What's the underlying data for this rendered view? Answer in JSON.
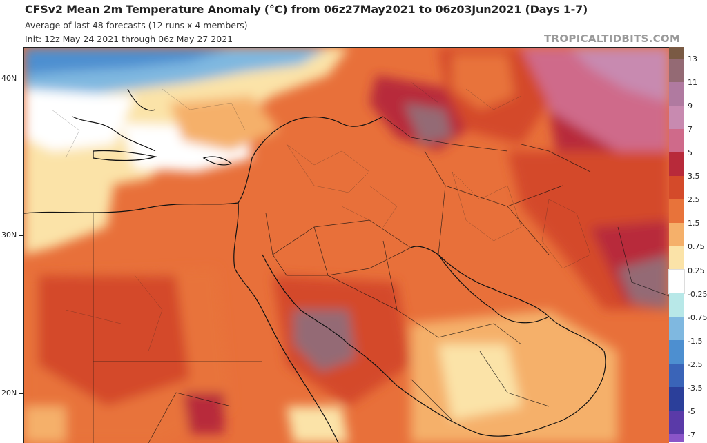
{
  "header": {
    "title": "CFSv2 Mean 2m Temperature Anomaly (°C) from 06z27May2021 to 06z03Jun2021 (Days 1-7)",
    "subtitle1": "Average of last 48 forecasts (12 runs x 4 members)",
    "subtitle2": "Init: 12z May 24 2021 through 06z May 27 2021",
    "brand": "TROPICALTIDBITS.COM"
  },
  "axes": {
    "latitude_labels": [
      "40N",
      "30N",
      "20N"
    ]
  },
  "colorbar": {
    "labels": [
      "13",
      "11",
      "9",
      "7",
      "5",
      "3.5",
      "2.5",
      "1.5",
      "0.75",
      "0.25",
      "-0.25",
      "-0.75",
      "-1.5",
      "-2.5",
      "-3.5",
      "-5",
      "-7"
    ],
    "colors": [
      "#7a5a44",
      "#946a74",
      "#b07aa0",
      "#c88ab0",
      "#cf6a8a",
      "#b82a3a",
      "#d44a2a",
      "#e8733a",
      "#f5b06a",
      "#fbe3a8",
      "#ffffff",
      "#b8e8e8",
      "#7fb8e0",
      "#4d8fd0",
      "#3a64b8",
      "#2b3f9a",
      "#5a3aa8",
      "#8a55c8"
    ]
  },
  "map": {
    "region": "Middle East / Eastern Mediterranean",
    "variable": "2m temperature anomaly",
    "features": [
      "coastlines",
      "country borders",
      "province borders",
      "filled anomaly contours"
    ]
  }
}
